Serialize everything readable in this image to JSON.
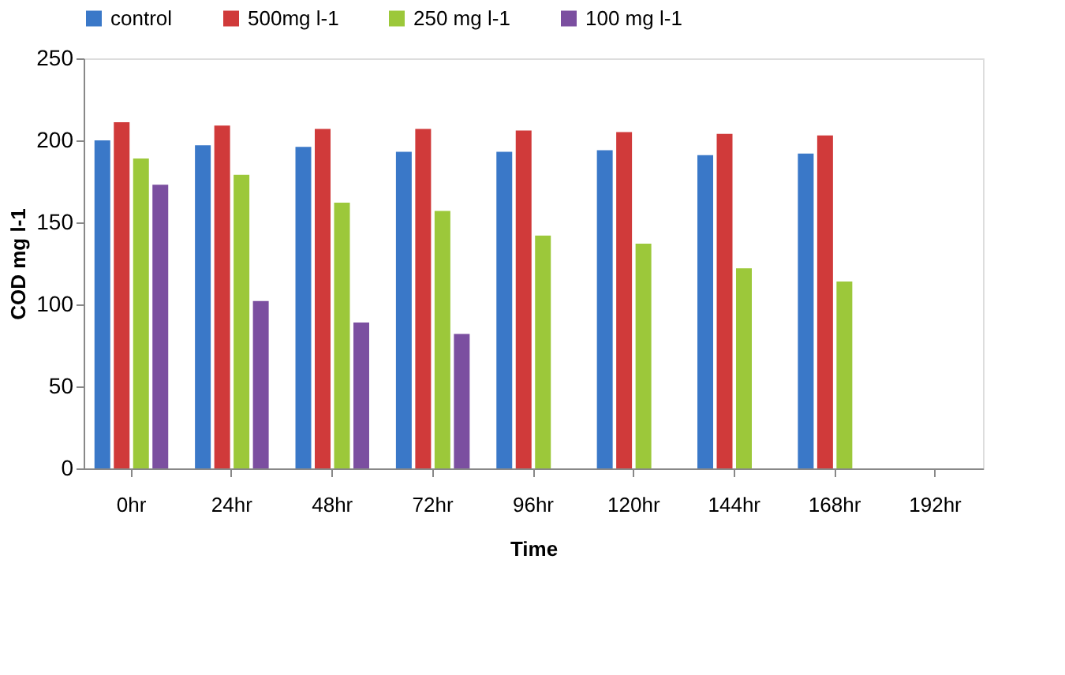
{
  "chart_data": {
    "type": "bar",
    "xlabel": "Time",
    "ylabel": "COD mg l-1",
    "categories": [
      "0hr",
      "24hr",
      "48hr",
      "72hr",
      "96hr",
      "120hr",
      "144hr",
      "168hr",
      "192hr"
    ],
    "series": [
      {
        "name": "control",
        "color": "#3a78c8",
        "values": [
          200,
          197,
          196,
          193,
          193,
          194,
          191,
          192,
          null
        ]
      },
      {
        "name": "500mg l-1",
        "color": "#d03a3a",
        "values": [
          211,
          209,
          207,
          207,
          206,
          205,
          204,
          203,
          null
        ]
      },
      {
        "name": "250 mg l-1",
        "color": "#9cc83a",
        "values": [
          189,
          179,
          162,
          157,
          142,
          137,
          122,
          114,
          null
        ]
      },
      {
        "name": "100 mg l-1",
        "color": "#7b4fa0",
        "values": [
          173,
          102,
          89,
          82,
          null,
          null,
          null,
          null,
          null
        ]
      }
    ],
    "ylim": [
      0,
      250
    ],
    "yticks": [
      0,
      50,
      100,
      150,
      200,
      250
    ],
    "grid": false,
    "legend": "top"
  }
}
